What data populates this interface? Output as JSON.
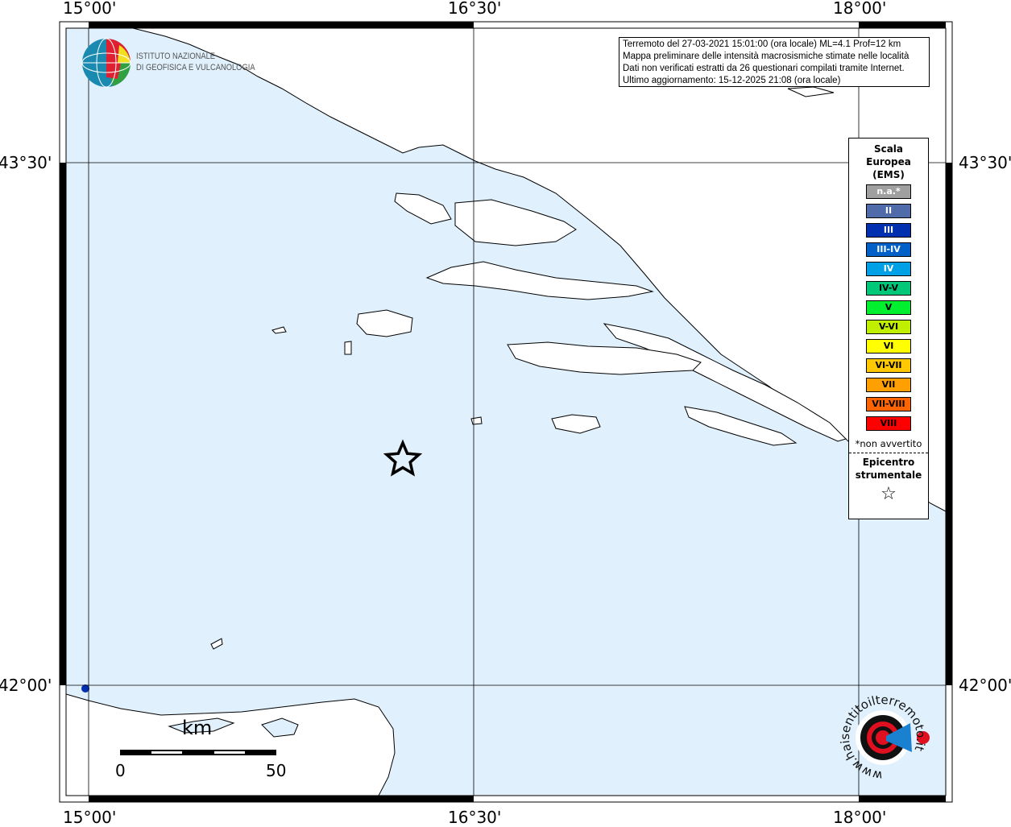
{
  "info": {
    "lines": [
      "Terremoto del 27-03-2021 15:01:00 (ora locale) ML=4.1 Prof=12 km",
      "Mappa preliminare delle intensità macrosismiche stimate nelle località",
      "Dati non verificati estratti da 26 questionari compilati tramite Internet.",
      "Ultimo aggiornamento: 15-12-2025 21:08 (ora locale)"
    ]
  },
  "axes": {
    "lon_labels": [
      "15°00'",
      "16°30'",
      "18°00'"
    ],
    "lat_labels": [
      "43°30'",
      "42°00'"
    ]
  },
  "legend": {
    "title": [
      "Scala",
      "Europea",
      "(EMS)"
    ],
    "items": [
      {
        "label": "n.a.*",
        "color": "#a0a0a0",
        "text_color": "#ffffff"
      },
      {
        "label": "II",
        "color": "#4f6baa",
        "text_color": "#ffffff"
      },
      {
        "label": "III",
        "color": "#0030b0",
        "text_color": "#ffffff"
      },
      {
        "label": "III-IV",
        "color": "#0060c8",
        "text_color": "#ffffff"
      },
      {
        "label": "IV",
        "color": "#00a0e6",
        "text_color": "#ffffff"
      },
      {
        "label": "IV-V",
        "color": "#00c878",
        "text_color": "#000000"
      },
      {
        "label": "V",
        "color": "#00f030",
        "text_color": "#000000"
      },
      {
        "label": "V-VI",
        "color": "#c0f000",
        "text_color": "#000000"
      },
      {
        "label": "VI",
        "color": "#ffff00",
        "text_color": "#000000"
      },
      {
        "label": "VI-VII",
        "color": "#ffc800",
        "text_color": "#000000"
      },
      {
        "label": "VII",
        "color": "#ffa000",
        "text_color": "#000000"
      },
      {
        "label": "VII-VIII",
        "color": "#ff6400",
        "text_color": "#000000"
      },
      {
        "label": "VIII",
        "color": "#ff0000",
        "text_color": "#000000"
      }
    ],
    "note": "*non avvertito",
    "epicenter_title": [
      "Epicentro",
      "strumentale"
    ],
    "epicenter_symbol": "☆"
  },
  "scale_bar": {
    "unit": "km",
    "start": "0",
    "end": "50"
  },
  "logos": {
    "ingv": [
      "ISTITUTO NAZIONALE",
      "DI GEOFISICA E VULCANOLOGIA"
    ],
    "hsit": "www.haisentitoilterremoto.it"
  },
  "colors": {
    "sea": "#e0f0fc",
    "land": "#ffffff",
    "coast": "#000000"
  }
}
